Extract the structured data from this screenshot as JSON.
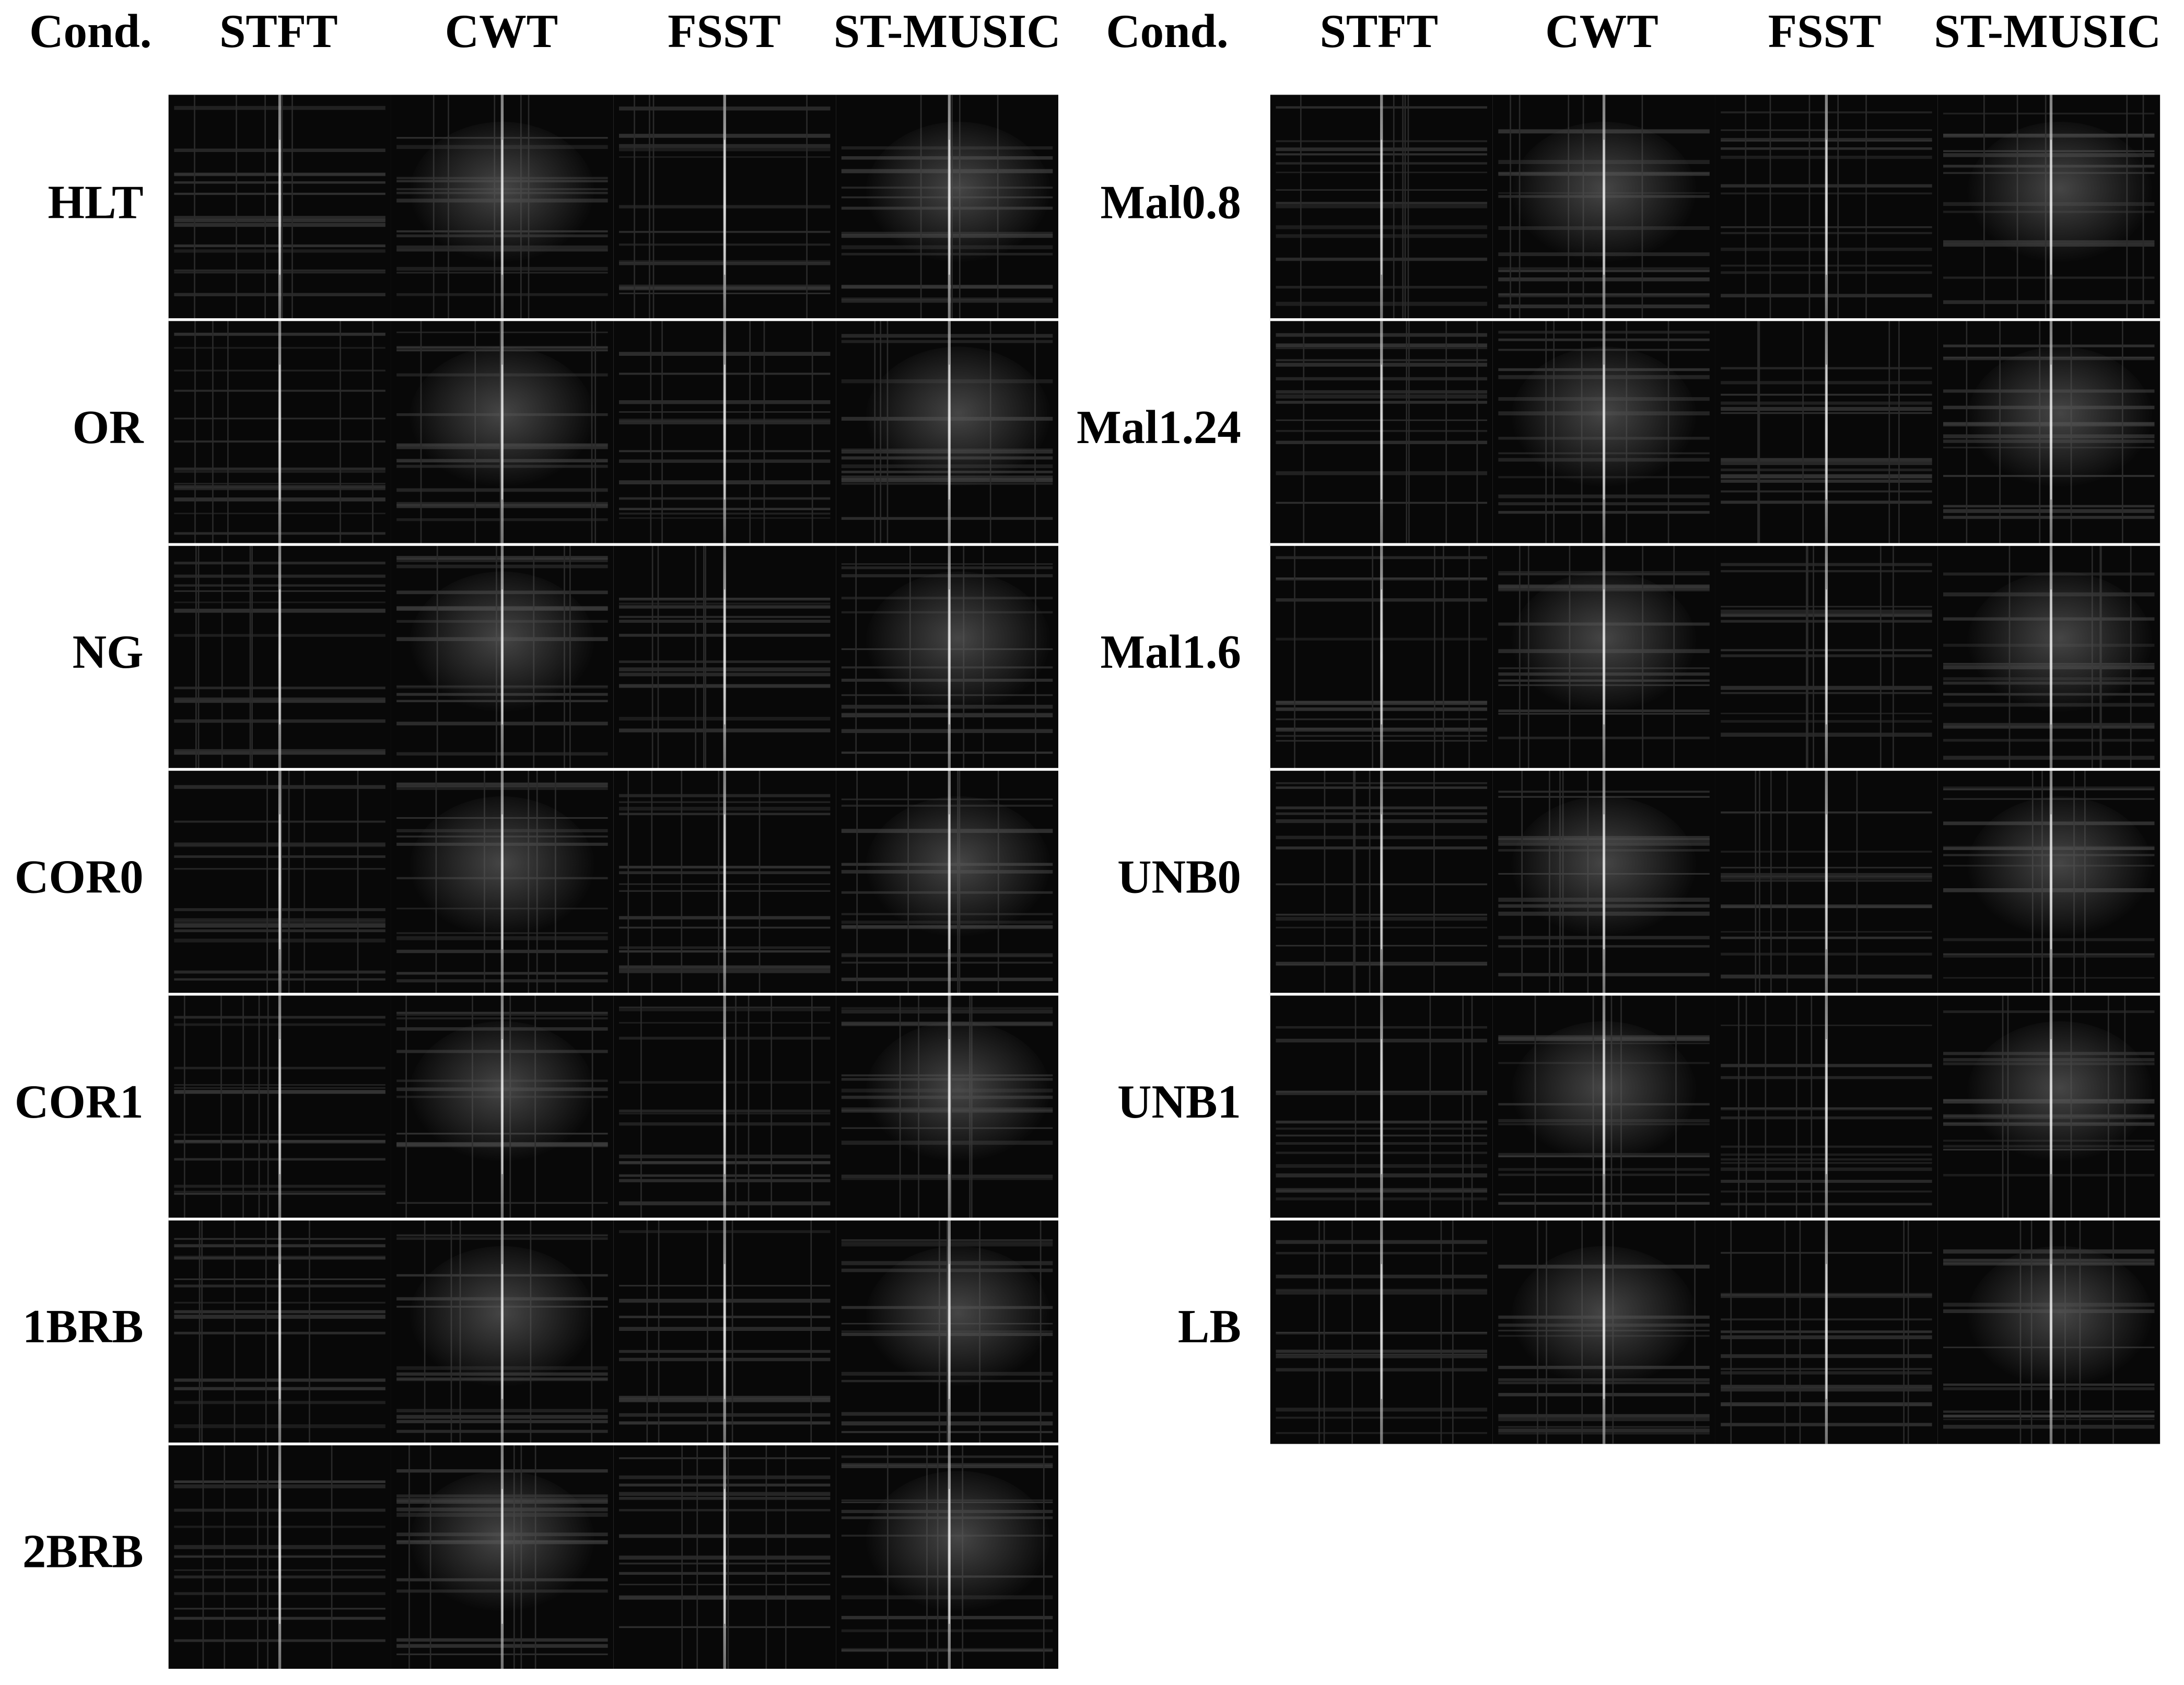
{
  "left": {
    "headers": [
      "Cond.",
      "STFT",
      "CWT",
      "FSST",
      "ST-MUSIC"
    ],
    "rows": [
      "HLT",
      "OR",
      "NG",
      "COR0",
      "COR1",
      "1BRB",
      "2BRB"
    ]
  },
  "right": {
    "headers": [
      "Cond.",
      "STFT",
      "CWT",
      "FSST",
      "ST-MUSIC"
    ],
    "rows": [
      "Mal0.8",
      "Mal1.24",
      "Mal1.6",
      "UNB0",
      "UNB1",
      "LB"
    ]
  }
}
